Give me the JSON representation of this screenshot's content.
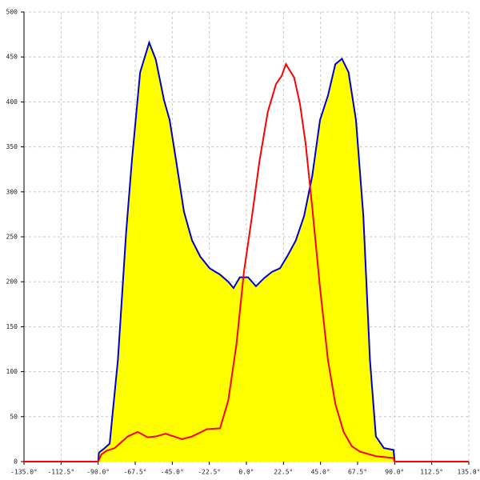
{
  "chart_data": {
    "type": "area",
    "xlim": [
      -135,
      135
    ],
    "ylim": [
      0,
      500
    ],
    "grid": true,
    "xticks": [
      {
        "value": -135,
        "label": "-135.0°"
      },
      {
        "value": -112.5,
        "label": "-112.5°"
      },
      {
        "value": -90,
        "label": "-90.0°"
      },
      {
        "value": -67.5,
        "label": "-67.5°"
      },
      {
        "value": -45,
        "label": "-45.0°"
      },
      {
        "value": -22.5,
        "label": "-22.5°"
      },
      {
        "value": 0,
        "label": "0.0°"
      },
      {
        "value": 22.5,
        "label": "22.5°"
      },
      {
        "value": 45,
        "label": "45.0°"
      },
      {
        "value": 67.5,
        "label": "67.5°"
      },
      {
        "value": 90,
        "label": "90.0°"
      },
      {
        "value": 112.5,
        "label": "112.5°"
      },
      {
        "value": 135,
        "label": "135.0°"
      }
    ],
    "yticks": [
      0,
      50,
      100,
      150,
      200,
      250,
      300,
      350,
      400,
      450,
      500
    ],
    "series": [
      {
        "color": "#0000cc",
        "fill": "#ffff00",
        "x": [
          -90,
          -89.5,
          -86,
          -83,
          -78,
          -73,
          -69.5,
          -64.5,
          -59,
          -55,
          -50,
          -46.6,
          -42.7,
          -37.9,
          -33,
          -28,
          -22.3,
          -16,
          -11,
          -7.8,
          -4,
          1,
          3.4,
          5.8,
          10.7,
          15.5,
          20.4,
          25,
          30,
          35,
          40,
          44.7,
          49.5,
          54,
          58,
          62,
          66.5,
          71,
          75,
          78.6,
          83.5,
          89.3,
          90
        ],
        "values": [
          0,
          10,
          15,
          20,
          113,
          255,
          335,
          433,
          466,
          447,
          402,
          380,
          335,
          278,
          246,
          228,
          215,
          208,
          200,
          193,
          205,
          205,
          200,
          195,
          204,
          211,
          215,
          229,
          246,
          273,
          318,
          380,
          407,
          442,
          448,
          433,
          380,
          273,
          113,
          28,
          15,
          13,
          0
        ]
      },
      {
        "color": "#ff0000",
        "x": [
          -135,
          -90,
          -88,
          -85,
          -80,
          -72,
          -66,
          -60,
          -55,
          -49,
          -44,
          -39,
          -33,
          -24,
          -16,
          -11,
          -6,
          -1.5,
          3.4,
          8,
          13,
          18,
          21.4,
          24,
          29,
          32.5,
          36,
          40,
          44.7,
          49.5,
          54,
          59,
          64,
          69,
          78.6,
          89.3,
          90,
          135
        ],
        "values": [
          0,
          0,
          8,
          12,
          15,
          28,
          33,
          27,
          28,
          31,
          28,
          25,
          28,
          36,
          37,
          68,
          131,
          211,
          273,
          335,
          389,
          420,
          429,
          442,
          427,
          398,
          353,
          282,
          193,
          113,
          64,
          33,
          17,
          11,
          6,
          4,
          0,
          0
        ]
      }
    ]
  }
}
